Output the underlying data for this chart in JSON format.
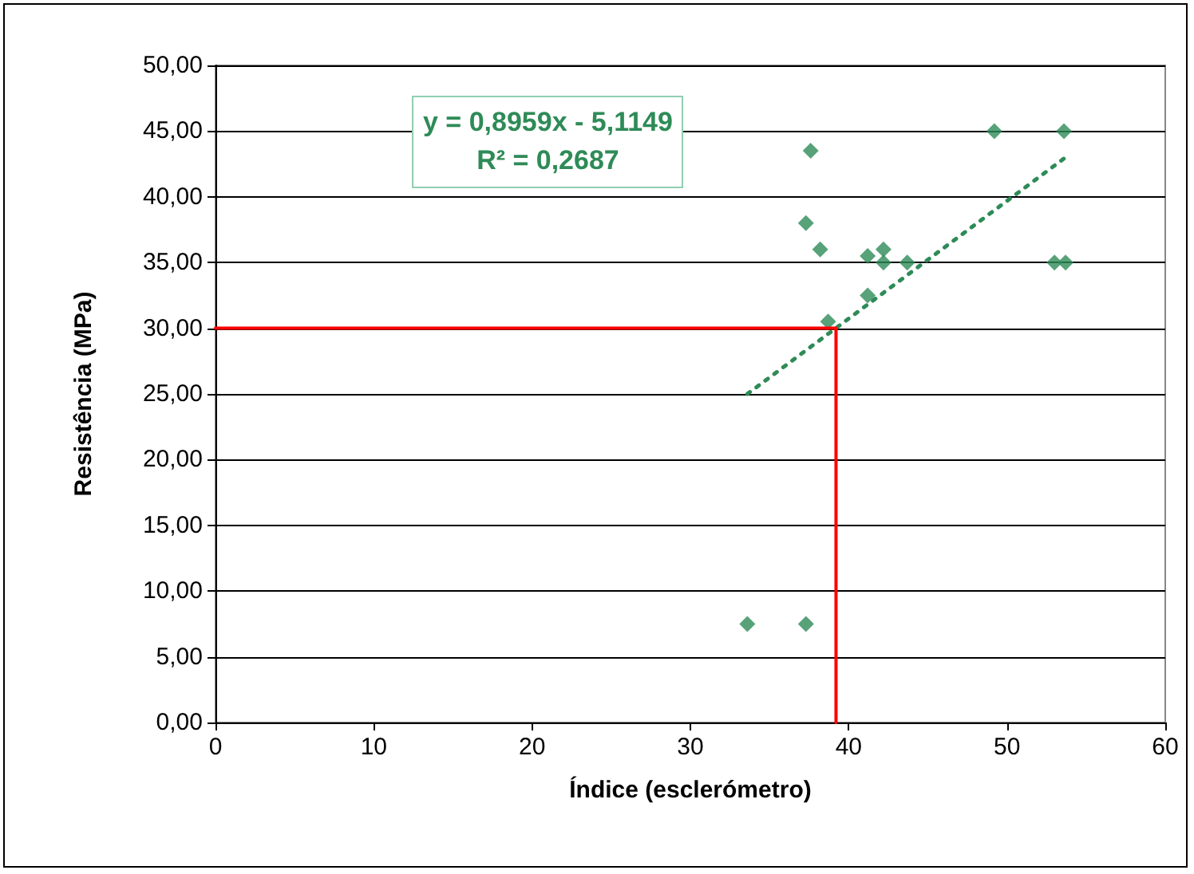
{
  "chart_data": {
    "type": "scatter",
    "xlabel": "Índice (esclerómetro)",
    "ylabel": "Resistência (MPa)",
    "annotations": [
      "y = 0,8959x - 5,1149",
      "R² = 0,2687"
    ],
    "series": [
      {
        "color": "#2e8b57",
        "marker": "diamond",
        "x": [
          49.2,
          53.6,
          37.6,
          37.3,
          38.2,
          41.2,
          42.2,
          42.2,
          43.7,
          53.0,
          53.7,
          41.2,
          38.7,
          33.6,
          37.3
        ],
        "values": [
          45,
          45,
          43.5,
          38,
          36,
          35.5,
          36,
          35,
          35,
          35,
          35,
          32.5,
          30.5,
          7.5,
          7.5
        ]
      },
      {
        "type": "line",
        "color": "#2e8b57",
        "line_style": "dotted",
        "marker": "none",
        "x": [
          33.6,
          53.7
        ],
        "values": [
          25.0,
          43.0
        ]
      },
      {
        "type": "line",
        "color": "#ff0000",
        "line_style": "solid",
        "marker": "none",
        "x": [
          0,
          39.2,
          39.2
        ],
        "values": [
          30,
          30,
          0
        ]
      }
    ],
    "xlim": [
      0,
      60
    ],
    "xticks": [
      0,
      10,
      20,
      30,
      40,
      50,
      60
    ],
    "ylim": [
      0,
      50
    ],
    "yticks": [
      {
        "value": 0,
        "label": "0,00"
      },
      {
        "value": 5,
        "label": "5,00"
      },
      {
        "value": 10,
        "label": "10,00"
      },
      {
        "value": 15,
        "label": "15,00"
      },
      {
        "value": 20,
        "label": "20,00"
      },
      {
        "value": 25,
        "label": "25,00"
      },
      {
        "value": 30,
        "label": "30,00"
      },
      {
        "value": 35,
        "label": "35,00"
      },
      {
        "value": 40,
        "label": "40,00"
      },
      {
        "value": 45,
        "label": "45,00"
      },
      {
        "value": 50,
        "label": "50,00"
      }
    ],
    "grid": "y"
  }
}
